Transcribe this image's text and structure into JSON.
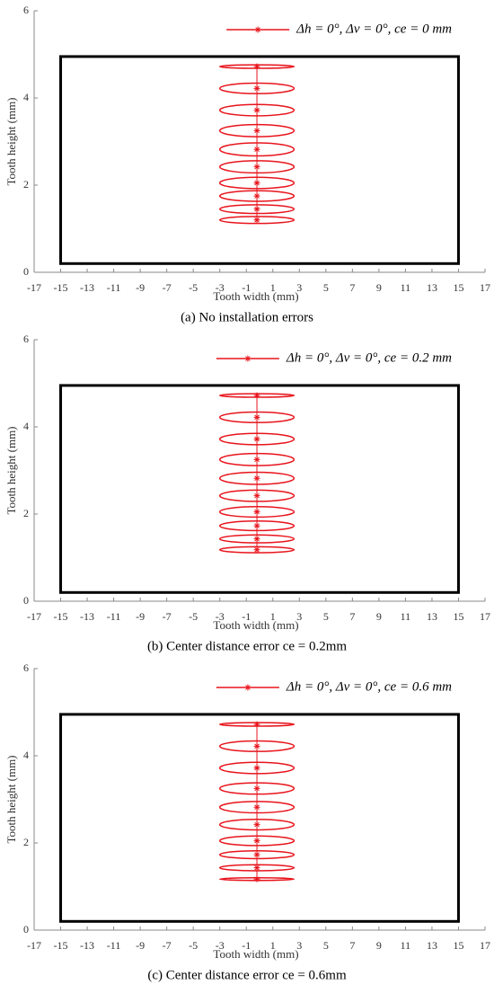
{
  "chart_data": [
    {
      "type": "contact-ellipse",
      "caption": "(a) No installation errors",
      "xlabel": "Tooth width (mm)",
      "ylabel": "Tooth height (mm)",
      "xlim": [
        -17,
        17
      ],
      "ylim": [
        0,
        6
      ],
      "xticks": [
        -17,
        -15,
        -13,
        -11,
        -9,
        -7,
        -5,
        -3,
        -1,
        1,
        3,
        5,
        7,
        9,
        11,
        13,
        15,
        17
      ],
      "yticks": [
        0,
        2,
        4,
        6
      ],
      "boundary": {
        "xlim": [
          -15,
          15
        ],
        "ylim": [
          0.2,
          4.95
        ],
        "color": "#000000"
      },
      "series": [
        {
          "name": "Δh = 0°, Δv = 0°, ce = 0 mm",
          "color": "#e8141c",
          "x": [
            -0.2,
            -0.2,
            -0.2,
            -0.2,
            -0.2,
            -0.2,
            -0.2,
            -0.2,
            -0.2,
            -0.2
          ],
          "values": [
            1.2,
            1.45,
            1.75,
            2.05,
            2.42,
            2.82,
            3.25,
            3.72,
            4.22,
            4.72
          ],
          "x_radii": [
            2.8,
            2.8,
            2.8,
            2.8,
            2.8,
            2.8,
            2.8,
            2.8,
            2.8,
            2.8
          ],
          "y_radii": [
            0.08,
            0.1,
            0.12,
            0.13,
            0.14,
            0.15,
            0.14,
            0.13,
            0.12,
            0.04
          ]
        }
      ]
    },
    {
      "type": "contact-ellipse",
      "caption": "(b) Center distance error  ce = 0.2mm",
      "xlabel": "Tooth width (mm)",
      "ylabel": "Tooth height (mm)",
      "xlim": [
        -17,
        17
      ],
      "ylim": [
        0,
        6
      ],
      "xticks": [
        -17,
        -15,
        -13,
        -11,
        -9,
        -7,
        -5,
        -3,
        -1,
        1,
        3,
        5,
        7,
        9,
        11,
        13,
        15,
        17
      ],
      "yticks": [
        0,
        2,
        4,
        6
      ],
      "boundary": {
        "xlim": [
          -15,
          15
        ],
        "ylim": [
          0.2,
          4.95
        ],
        "color": "#000000"
      },
      "series": [
        {
          "name": "Δh = 0°, Δv = 0°, ce = 0.2 mm",
          "color": "#e8141c",
          "x": [
            -0.2,
            -0.2,
            -0.2,
            -0.2,
            -0.2,
            -0.2,
            -0.2,
            -0.2,
            -0.2,
            -0.2
          ],
          "values": [
            1.18,
            1.43,
            1.73,
            2.05,
            2.42,
            2.82,
            3.25,
            3.72,
            4.22,
            4.72
          ],
          "x_radii": [
            2.8,
            2.8,
            2.8,
            2.8,
            2.8,
            2.8,
            2.8,
            2.8,
            2.8,
            2.8
          ],
          "y_radii": [
            0.07,
            0.09,
            0.11,
            0.12,
            0.13,
            0.14,
            0.14,
            0.13,
            0.12,
            0.04
          ]
        }
      ]
    },
    {
      "type": "contact-ellipse",
      "caption": "(c) Center distance error  ce = 0.6mm",
      "xlabel": "Tooth width (mm)",
      "ylabel": "Tooth height (mm)",
      "xlim": [
        -17,
        17
      ],
      "ylim": [
        0,
        6
      ],
      "xticks": [
        -17,
        -15,
        -13,
        -11,
        -9,
        -7,
        -5,
        -3,
        -1,
        1,
        3,
        5,
        7,
        9,
        11,
        13,
        15,
        17
      ],
      "yticks": [
        0,
        2,
        4,
        6
      ],
      "boundary": {
        "xlim": [
          -15,
          15
        ],
        "ylim": [
          0.2,
          4.95
        ],
        "color": "#000000"
      },
      "series": [
        {
          "name": "Δh = 0°, Δv = 0°, ce = 0.6 mm",
          "color": "#e8141c",
          "x": [
            -0.2,
            -0.2,
            -0.2,
            -0.2,
            -0.2,
            -0.2,
            -0.2,
            -0.2,
            -0.2,
            -0.2
          ],
          "values": [
            1.17,
            1.43,
            1.73,
            2.05,
            2.42,
            2.82,
            3.25,
            3.72,
            4.22,
            4.72
          ],
          "x_radii": [
            2.8,
            2.8,
            2.8,
            2.8,
            2.8,
            2.8,
            2.8,
            2.8,
            2.8,
            2.8
          ],
          "y_radii": [
            0.03,
            0.07,
            0.09,
            0.11,
            0.12,
            0.13,
            0.13,
            0.13,
            0.12,
            0.04
          ]
        }
      ]
    }
  ]
}
